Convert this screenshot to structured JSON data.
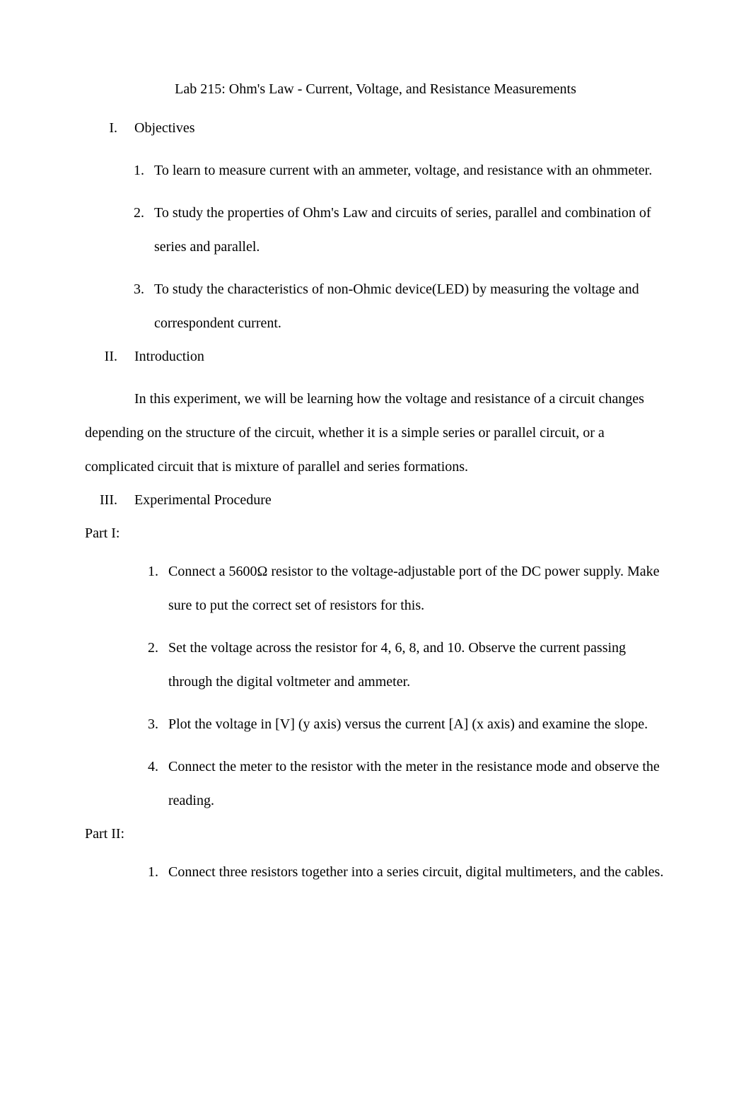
{
  "title": "Lab 215: Ohm's Law - Current, Voltage, and Resistance Measurements",
  "sections": {
    "objectives": {
      "roman": "I.",
      "label": "Objectives",
      "items": [
        {
          "num": "1.",
          "text": "To learn to measure current with an ammeter, voltage, and resistance with an ohmmeter."
        },
        {
          "num": "2.",
          "text": "To study the properties of Ohm's Law and circuits of series, parallel and combination of series and parallel."
        },
        {
          "num": "3.",
          "text": "To study the characteristics of non-Ohmic device(LED) by measuring the voltage and correspondent current."
        }
      ]
    },
    "introduction": {
      "roman": "II.",
      "label": "Introduction",
      "paragraph": "In this experiment, we will be learning how the voltage and resistance of a circuit changes depending on the structure of the circuit, whether it is a simple series or parallel circuit, or a complicated circuit that is mixture of parallel and series formations."
    },
    "procedure": {
      "roman": "III.",
      "label": "Experimental Procedure",
      "part1": {
        "label": "Part I:",
        "items": [
          {
            "num": "1.",
            "text": "Connect a 5600Ω resistor to the voltage-adjustable port of the DC power supply. Make sure to put the correct set of resistors for this."
          },
          {
            "num": "2.",
            "text": "Set the voltage across the resistor for 4, 6, 8, and 10. Observe the current passing through the digital voltmeter and ammeter."
          },
          {
            "num": "3.",
            "text": "Plot the voltage in [V] (y axis) versus the current [A] (x axis) and examine the slope."
          },
          {
            "num": "4.",
            "text": "Connect the meter to the resistor with the meter in the resistance mode and observe the reading."
          }
        ]
      },
      "part2": {
        "label": "Part II:",
        "items": [
          {
            "num": "1.",
            "text": "Connect three resistors together into a series circuit, digital multimeters, and the cables."
          }
        ]
      }
    }
  }
}
